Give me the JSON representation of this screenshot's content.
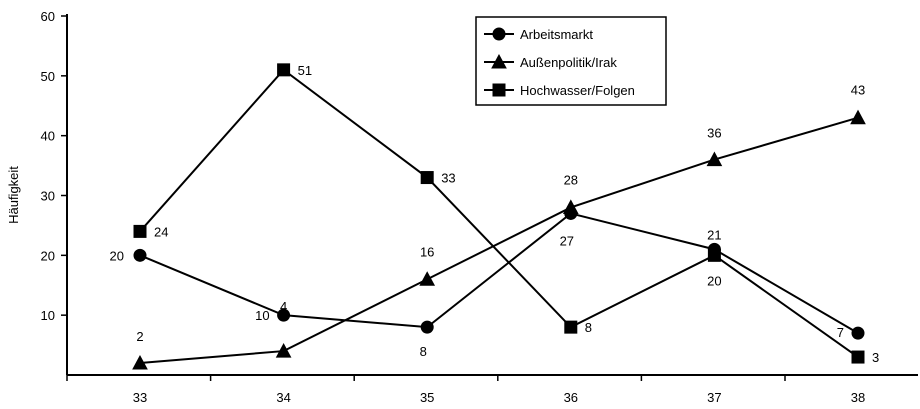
{
  "chart_data": {
    "type": "line",
    "title": "",
    "xlabel": "",
    "ylabel": "Häufigkeit",
    "x": [
      "33",
      "34",
      "35",
      "36",
      "37",
      "38"
    ],
    "ylim": [
      0,
      60
    ],
    "yticks": [
      "10",
      "20",
      "30",
      "40",
      "50",
      "60"
    ],
    "grid": false,
    "legend": "top-right",
    "series": [
      {
        "name": "Arbeitsmarkt",
        "marker": "circle",
        "values": [
          20,
          10,
          8,
          27,
          21,
          7
        ],
        "labels": [
          "20",
          "10",
          "8",
          "27",
          "21",
          "7"
        ]
      },
      {
        "name": "Außenpolitik/Irak",
        "marker": "triangle",
        "values": [
          2,
          4,
          16,
          28,
          36,
          43
        ],
        "labels": [
          "2",
          "4",
          "16",
          "28",
          "36",
          "43"
        ]
      },
      {
        "name": "Hochwasser/Folgen",
        "marker": "square",
        "values": [
          24,
          51,
          33,
          8,
          20,
          3
        ],
        "labels": [
          "24",
          "51",
          "33",
          "8",
          "20",
          "3"
        ]
      }
    ]
  }
}
